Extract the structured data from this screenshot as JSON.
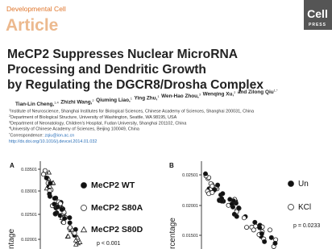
{
  "header": {
    "journal": "Developmental Cell",
    "type": "Article",
    "logo": {
      "name": "Cell",
      "sub": "PRESS"
    }
  },
  "title": {
    "lines": [
      "MeCP2 Suppresses Nuclear MicroRNA",
      "Processing and Dendritic Growth",
      "by Regulating the DGCR8/Drosha Complex"
    ]
  },
  "authors": [
    {
      "name": "Tian-Lin Cheng,",
      "sup": "1,4"
    },
    {
      "name": "Zhizhi Wang,",
      "sup": "2"
    },
    {
      "name": "Qiuming Liao,",
      "sup": "1"
    },
    {
      "name": "Ying Zhu,",
      "sup": "1"
    },
    {
      "name": "Wen-Hao Zhou,",
      "sup": "3"
    },
    {
      "name": "Wenqing Xu,",
      "sup": "2"
    },
    {
      "name": "and Zilong Qiu",
      "sup": "1,*"
    }
  ],
  "affiliations": [
    {
      "sup": "1",
      "text": "Institute of Neuroscience, Shanghai Institutes for Biological Sciences, Chinese Academy of Sciences, Shanghai 200031, China"
    },
    {
      "sup": "2",
      "text": "Department of Biological Structure, University of Washington, Seattle, WA 98195, USA"
    },
    {
      "sup": "3",
      "text": "Department of Neonatology, Children's Hospital, Fudan University, Shanghai 201102, China"
    },
    {
      "sup": "4",
      "text": "University of Chinese Academy of Sciences, Beijing 100049, China"
    }
  ],
  "correspondence": {
    "sup": "*",
    "text": "Correspondence: ",
    "email": "zqiu@ion.ac.cn"
  },
  "doi": "http://dx.doi.org/10.1016/j.devcel.2014.01.032",
  "figure": {
    "panels": [
      {
        "label": "A",
        "axis_label": "ntage",
        "ticks": [
          "0.03501",
          "0.03001",
          "0.02501",
          "0.02001"
        ],
        "legend": [
          "MeCP2 WT",
          "MeCP2 S80A",
          "MeCP2 S80D"
        ],
        "p_value": "p < 0.001"
      },
      {
        "label": "B",
        "axis_label": "rcentage",
        "ticks": [
          "0.02501",
          "0.02001",
          "0.01501"
        ],
        "legend": [
          "Un",
          "KCl"
        ],
        "p_value": "p = 0.0233"
      }
    ]
  }
}
